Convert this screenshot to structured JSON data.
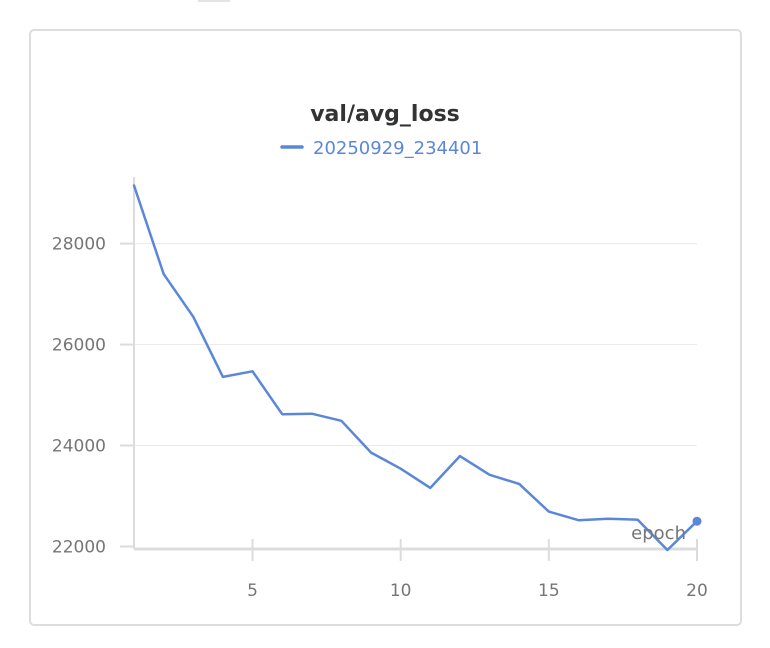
{
  "chart_data": {
    "type": "line",
    "title": "val/avg_loss",
    "xlabel": "epoch",
    "ylabel": "",
    "xlim": [
      1,
      20
    ],
    "ylim": [
      21950,
      29200
    ],
    "xticks": [
      5,
      10,
      15,
      20
    ],
    "yticks": [
      22000,
      24000,
      26000,
      28000
    ],
    "grid": true,
    "legend": "top-center",
    "series": [
      {
        "name": "20250929_234401",
        "color": "#5b87d9",
        "x": [
          1,
          2,
          3,
          4,
          5,
          6,
          7,
          8,
          9,
          10,
          11,
          12,
          13,
          14,
          15,
          16,
          17,
          18,
          19,
          20
        ],
        "y": [
          29150,
          27400,
          26550,
          25360,
          25470,
          24620,
          24630,
          24490,
          23860,
          23540,
          23160,
          23790,
          23420,
          23240,
          22690,
          22520,
          22550,
          22530,
          21930,
          22500
        ]
      }
    ]
  }
}
